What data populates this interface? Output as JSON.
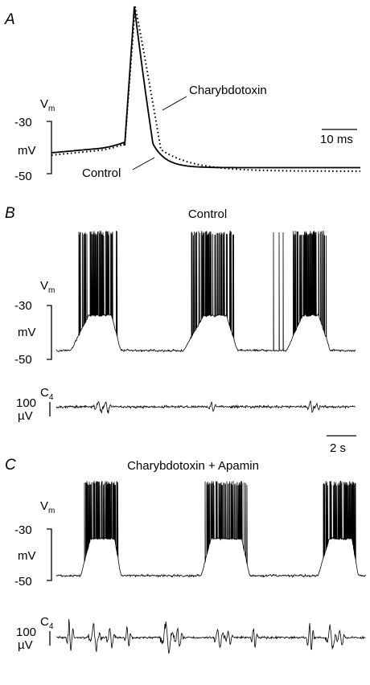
{
  "chart_data": [
    {
      "type": "line",
      "panel": "A",
      "series": [
        {
          "name": "Control",
          "style": "solid"
        },
        {
          "name": "Charybdotoxin",
          "style": "dotted"
        }
      ],
      "y_scale_bar": {
        "label_main": "V",
        "label_sub": "m",
        "unit": "mV",
        "top": "-30",
        "bottom": "-50"
      },
      "time_scale_bar": {
        "label": "10 ms"
      }
    },
    {
      "type": "line",
      "panel": "B",
      "title": "Control",
      "vm": {
        "label_main": "V",
        "label_sub": "m",
        "unit": "mV",
        "top": "-30",
        "bottom": "-50"
      },
      "c4": {
        "label_main": "C",
        "label_sub": "4",
        "top": "100",
        "bottom": "µV"
      },
      "time_scale_bar": {
        "label": "2 s"
      }
    },
    {
      "type": "line",
      "panel": "C",
      "title": "Charybdotoxin + Apamin",
      "vm": {
        "label_main": "V",
        "label_sub": "m",
        "unit": "mV",
        "top": "-30",
        "bottom": "-50"
      },
      "c4": {
        "label_main": "C",
        "label_sub": "4",
        "top": "100",
        "bottom": "µV"
      }
    }
  ]
}
